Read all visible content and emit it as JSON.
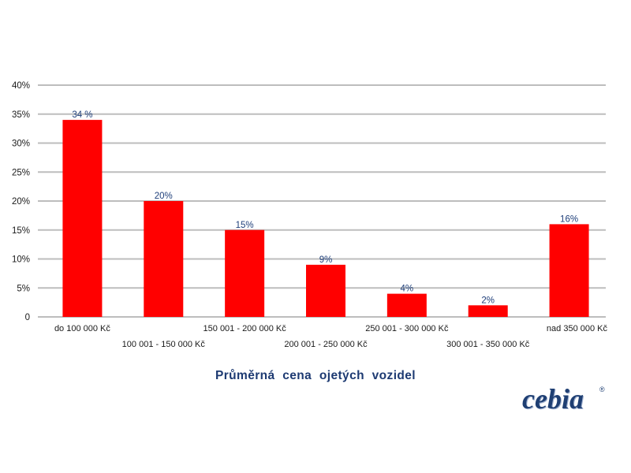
{
  "chart_data": {
    "type": "bar",
    "title": "Průměrná  cena  ojetých  vozidel",
    "categories": [
      "do 100 000 Kč",
      "100 001 - 150 000 Kč",
      "150 001 - 200 000 Kč",
      "200 001 - 250 000 Kč",
      "250 001 - 300 000 Kč",
      "300 001 - 350 000 Kč",
      "nad 350 000 Kč"
    ],
    "values": [
      34,
      20,
      15,
      9,
      4,
      2,
      16
    ],
    "value_labels": [
      "34 %",
      "20%",
      "15%",
      "9%",
      "4%",
      "2%",
      "16%"
    ],
    "ylim": [
      0,
      40
    ],
    "yticks": [
      0,
      5,
      10,
      15,
      20,
      25,
      30,
      35,
      40
    ],
    "ytick_labels": [
      "0",
      "5%",
      "10%",
      "15%",
      "20%",
      "25%",
      "30%",
      "35%",
      "40%"
    ],
    "grid": true,
    "colors": {
      "bar": "#ff0000",
      "grid": "#bdbdbd",
      "data_label": "#1f3f7a"
    }
  },
  "logo": {
    "text": "cebia",
    "mark": "®"
  }
}
